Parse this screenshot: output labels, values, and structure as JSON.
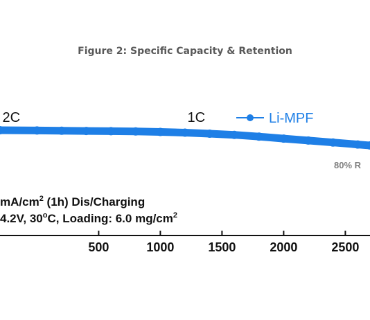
{
  "figure_title": "Figure 2: Specific Capacity & Retention",
  "colors": {
    "series": "#1e7fe6",
    "axis": "#111111",
    "retention": "#808080"
  },
  "chart_data": {
    "type": "line",
    "title": "Figure 2: Specific Capacity & Retention",
    "xlabel": "",
    "ylabel": "",
    "xlim": [
      -300,
      2700
    ],
    "x_ticks": [
      {
        "value": 500,
        "label": "500"
      },
      {
        "value": 1000,
        "label": "1000"
      },
      {
        "value": 1500,
        "label": "1500"
      },
      {
        "value": 2000,
        "label": "2000"
      },
      {
        "value": 2500,
        "label": "2500"
      }
    ],
    "rate_labels": [
      {
        "text": "2C",
        "x": -280
      },
      {
        "text": "1C",
        "x": 1220
      }
    ],
    "legend": {
      "position": "top-right",
      "entries": [
        "Li-MPF"
      ]
    },
    "retention_label": "80% R",
    "condition_line1": {
      "prefix": "mA/cm",
      "sup": "2",
      "suffix": " (1h) Dis/Charging"
    },
    "condition_line2": {
      "prefix": "4.2V, 30",
      "sup": "o",
      "mid": "C, Loading: 6.0 mg/cm",
      "sup2": "2"
    },
    "series": [
      {
        "name": "Li-MPF",
        "x": [
          -300,
          0,
          200,
          400,
          600,
          800,
          1000,
          1200,
          1400,
          1600,
          1800,
          2000,
          2200,
          2400,
          2600,
          2700
        ],
        "y": [
          100,
          99.9,
          99.8,
          99.7,
          99.6,
          99.5,
          99.3,
          99.0,
          98.6,
          98.1,
          97.4,
          96.6,
          95.8,
          95.0,
          94.2,
          93.8
        ]
      }
    ]
  }
}
